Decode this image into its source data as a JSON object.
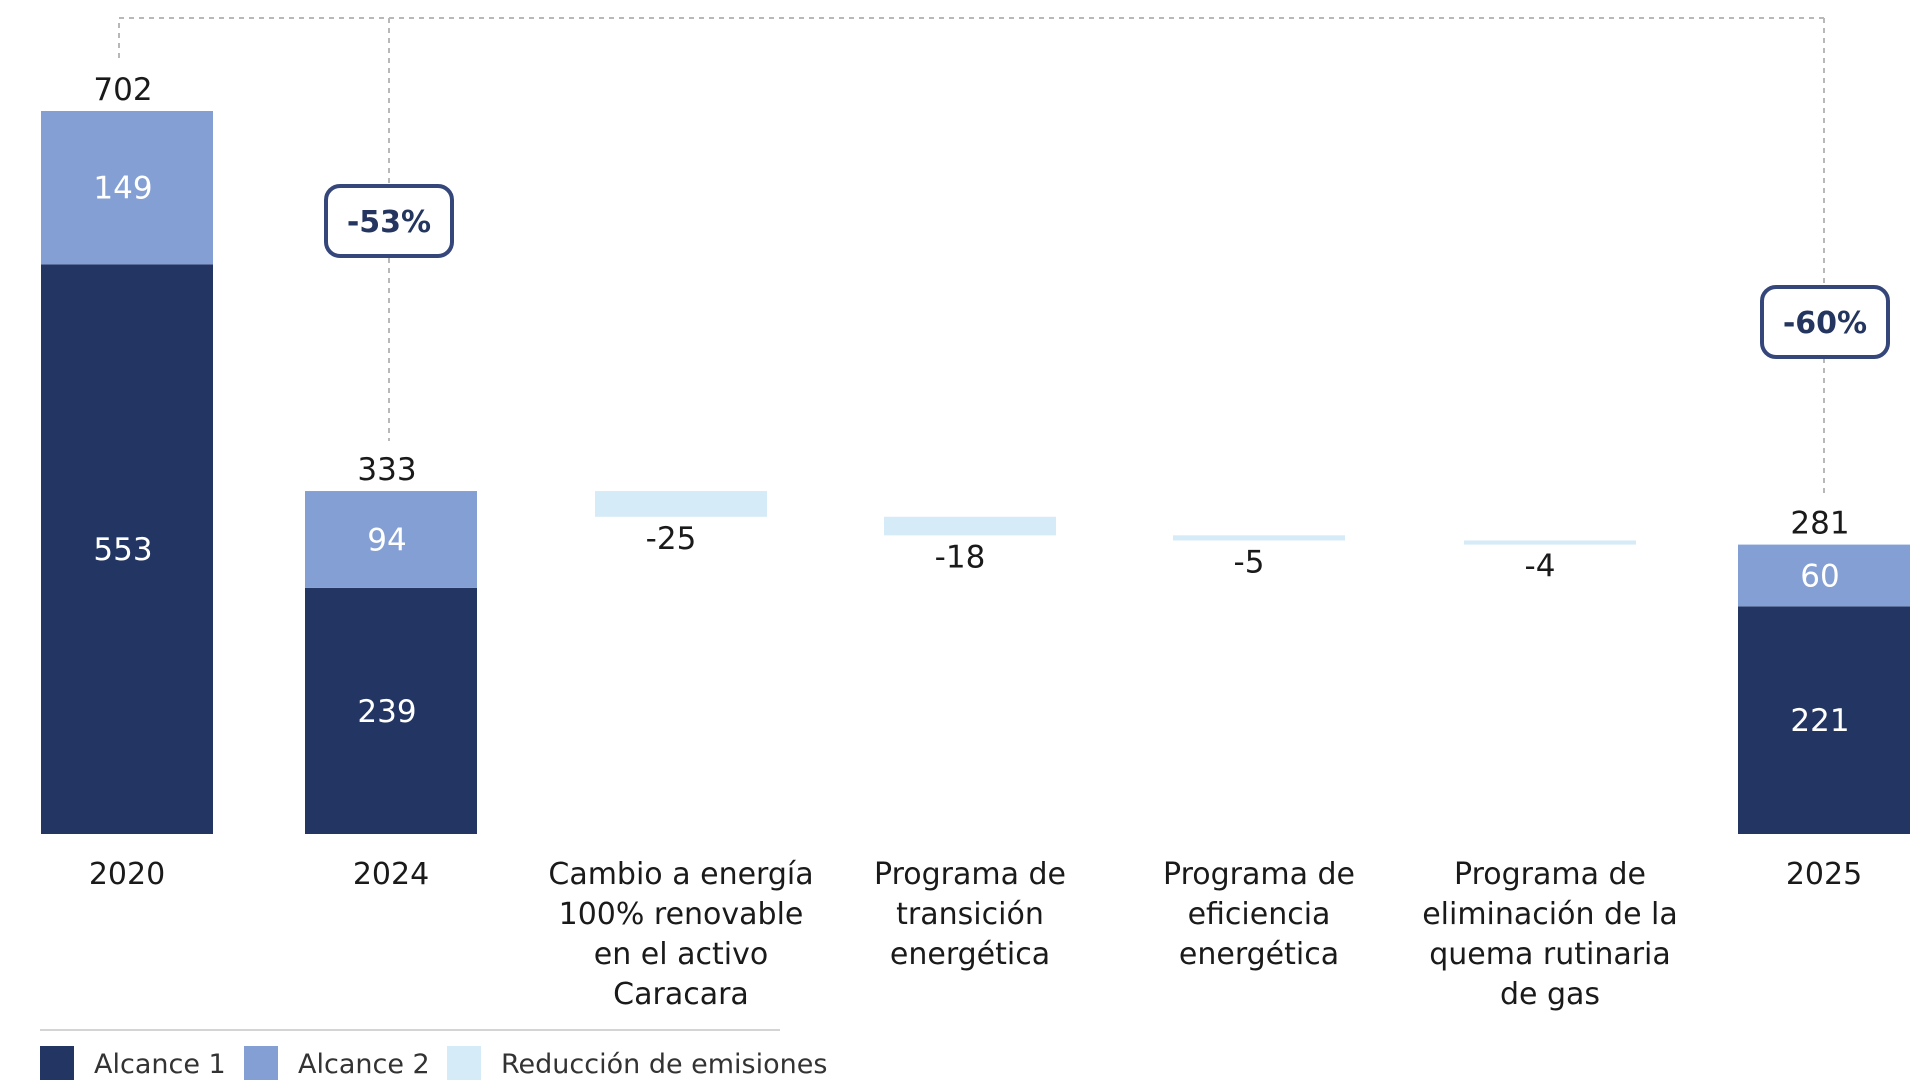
{
  "colors": {
    "alcance1": "#233562",
    "alcance2": "#849fd4",
    "reduccion": "#d5ebf7",
    "badge_border": "#34467a",
    "connector": "#b8b8b8"
  },
  "chart_data": {
    "type": "bar",
    "subtype": "waterfall-stacked",
    "title": "",
    "xlabel": "",
    "ylabel": "",
    "ylim": [
      0,
      702
    ],
    "categories": [
      "2020",
      "2024",
      "Cambio a energía 100% renovable en el activo Caracara",
      "Programa de transición energética",
      "Programa de eficiencia energética",
      "Programa de eliminación de la quema rutinaria de gas",
      "2025"
    ],
    "category_lines": [
      [
        "2020"
      ],
      [
        "2024"
      ],
      [
        "Cambio a energía",
        "100% renovable",
        "en el activo",
        "Caracara"
      ],
      [
        "Programa de",
        "transición",
        "energética"
      ],
      [
        "Programa de",
        "eficiencia",
        "energética"
      ],
      [
        "Programa de",
        "eliminación de la",
        "quema rutinaria",
        "de gas"
      ],
      [
        "2025"
      ]
    ],
    "series": [
      {
        "name": "Alcance 1",
        "values": [
          553,
          239,
          null,
          null,
          null,
          null,
          221
        ]
      },
      {
        "name": "Alcance 2",
        "values": [
          149,
          94,
          null,
          null,
          null,
          null,
          60
        ]
      },
      {
        "name": "Reducción de emisiones",
        "values": [
          null,
          null,
          -25,
          -18,
          -5,
          -4,
          null
        ]
      }
    ],
    "totals": [
      702,
      333,
      null,
      null,
      null,
      null,
      281
    ],
    "total_labels": [
      "702",
      "333",
      "",
      "",
      "",
      "",
      "281"
    ],
    "inside_labels": {
      "alcance1": [
        "553",
        "239",
        "",
        "",
        "",
        "",
        "221"
      ],
      "alcance2": [
        "149",
        "94",
        "",
        "",
        "",
        "",
        "60"
      ]
    },
    "reduction_labels": [
      "",
      "",
      "-25",
      "-18",
      "-5",
      "-4",
      ""
    ],
    "annotations": [
      {
        "text": "-53%",
        "from": "2020",
        "to": "2024"
      },
      {
        "text": "-60%",
        "from": "2020",
        "to": "2025"
      }
    ],
    "legend": {
      "position": "bottom-left",
      "items": [
        "Alcance 1",
        "Alcance 2",
        "Reducción de emisiones"
      ]
    },
    "grid": false
  }
}
